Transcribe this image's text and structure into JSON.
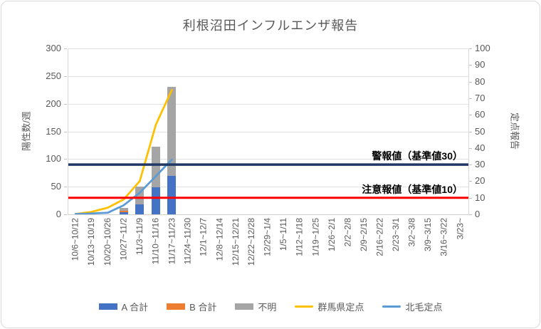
{
  "chart_data": {
    "type": "combo-stacked-bar-line",
    "title": "利根沼田インフルエンザ報告",
    "categories": [
      "10/6~10/12",
      "10/13~10/19",
      "10/20~10/26",
      "10/27~11/2",
      "11/3~11/9",
      "11/10~11/16",
      "11/17~11/23",
      "11/24~11/30",
      "12/1~12/7",
      "12/8~12/14",
      "12/15~12/21",
      "12/22~12/28",
      "12/29~1/4",
      "1/5~1/11",
      "1/12~1/18",
      "1/19~1/25",
      "1/26~2/1",
      "2/2~2/8",
      "2/9~2/15",
      "2/16~2/22",
      "2/23~3/1",
      "3/2~3/8",
      "3/9~3/15",
      "3/16~3/22",
      "3/23~"
    ],
    "bar_series": [
      {
        "name": "A 合計",
        "color": "#4472C4",
        "axis": "left",
        "values": [
          0,
          0,
          0,
          4,
          18,
          49,
          70,
          0,
          0,
          0,
          0,
          0,
          0,
          0,
          0,
          0,
          0,
          0,
          0,
          0,
          0,
          0,
          0,
          0,
          0
        ]
      },
      {
        "name": "B 合計",
        "color": "#ED7D31",
        "axis": "left",
        "values": [
          0,
          0,
          0,
          3,
          0,
          0,
          0,
          0,
          0,
          0,
          0,
          0,
          0,
          0,
          0,
          0,
          0,
          0,
          0,
          0,
          0,
          0,
          0,
          0,
          0
        ]
      },
      {
        "name": "不明",
        "color": "#A5A5A5",
        "axis": "left",
        "values": [
          0,
          0,
          0,
          5,
          32,
          74,
          160,
          0,
          0,
          0,
          0,
          0,
          0,
          0,
          0,
          0,
          0,
          0,
          0,
          0,
          0,
          0,
          0,
          0,
          0
        ]
      }
    ],
    "line_series": [
      {
        "name": "群馬県定点",
        "color": "#FFC000",
        "axis": "right",
        "values": [
          0.2,
          1.5,
          4,
          9,
          20,
          54,
          75,
          null,
          null,
          null,
          null,
          null,
          null,
          null,
          null,
          null,
          null,
          null,
          null,
          null,
          null,
          null,
          null,
          null,
          null
        ]
      },
      {
        "name": "北毛定点",
        "color": "#5B9BD5",
        "axis": "right",
        "values": [
          0.2,
          0.5,
          1,
          5.5,
          13,
          23,
          33,
          null,
          null,
          null,
          null,
          null,
          null,
          null,
          null,
          null,
          null,
          null,
          null,
          null,
          null,
          null,
          null,
          null,
          null
        ]
      }
    ],
    "reference_lines": [
      {
        "label": "警報値（基準値30）",
        "right_axis_value": 30,
        "color": "#1F3864"
      },
      {
        "label": "注意報値（基準値10）",
        "right_axis_value": 10,
        "color": "#FF0000"
      }
    ],
    "left_axis": {
      "title": "陽性数/週",
      "min": 0,
      "max": 300,
      "step": 50
    },
    "right_axis": {
      "title": "定点報告",
      "min": 0,
      "max": 100,
      "step": 10
    },
    "grid": true,
    "legend_position": "bottom"
  }
}
